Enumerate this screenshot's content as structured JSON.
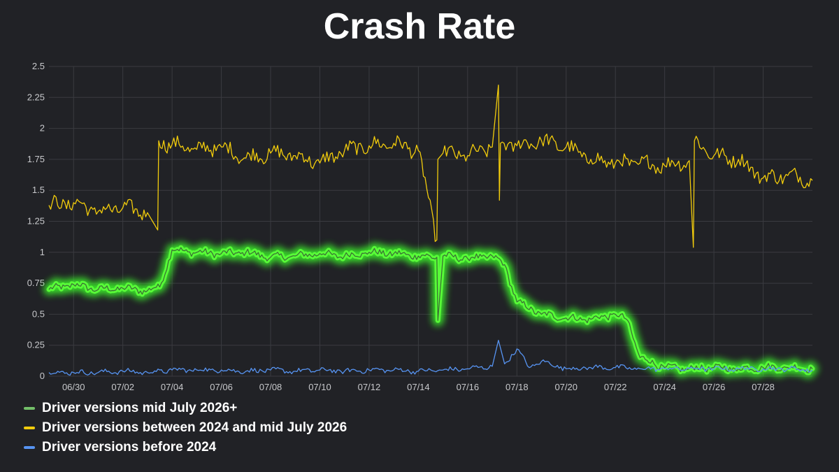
{
  "chart_data": {
    "type": "line",
    "title": "Crash Rate",
    "xlabel": "",
    "ylabel": "",
    "x_ticks": [
      "06/30",
      "07/02",
      "07/04",
      "07/06",
      "07/08",
      "07/10",
      "07/12",
      "07/14",
      "07/16",
      "07/18",
      "07/20",
      "07/22",
      "07/24",
      "07/26",
      "07/28"
    ],
    "y_ticks": [
      "0",
      "0.25",
      "0.5",
      "0.75",
      "1",
      "1.25",
      "1.5",
      "1.75",
      "2",
      "2.25",
      "2.5"
    ],
    "ylim": [
      0,
      2.5
    ],
    "xlim": [
      "06/29",
      "07/30"
    ],
    "grid": true,
    "legend_position": "bottom-left",
    "series": [
      {
        "name": "Driver versions mid July 2026+",
        "color": "#73bf69",
        "highlight": "glow",
        "x": [
          "06/29",
          "06/30",
          "07/01",
          "07/02",
          "07/03",
          "07/03 12:00",
          "07/04",
          "07/05",
          "07/06",
          "07/07",
          "07/08",
          "07/09",
          "07/10",
          "07/11",
          "07/12",
          "07/13",
          "07/14",
          "07/14 18:00",
          "07/14 19:00",
          "07/15",
          "07/16",
          "07/17",
          "07/17 12:00",
          "07/18",
          "07/19",
          "07/20",
          "07/21",
          "07/22",
          "07/22 12:00",
          "07/23",
          "07/24",
          "07/25",
          "07/26",
          "07/27",
          "07/28",
          "07/29",
          "07/30"
        ],
        "y": [
          0.7,
          0.74,
          0.7,
          0.71,
          0.69,
          0.72,
          1.02,
          1.0,
          0.99,
          1.0,
          0.96,
          0.97,
          0.99,
          0.97,
          1.0,
          0.99,
          0.97,
          0.96,
          0.45,
          0.97,
          0.95,
          0.97,
          0.9,
          0.6,
          0.5,
          0.47,
          0.46,
          0.5,
          0.45,
          0.15,
          0.07,
          0.06,
          0.07,
          0.06,
          0.07,
          0.07,
          0.06
        ]
      },
      {
        "name": "Driver versions between 2024 and mid July 2026",
        "color": "#f2cc0c",
        "x": [
          "06/29",
          "06/30",
          "07/01",
          "07/02",
          "07/03",
          "07/03 10:00",
          "07/03 11:00",
          "07/04",
          "07/05",
          "07/06",
          "07/07",
          "07/08",
          "07/09",
          "07/10",
          "07/11",
          "07/12",
          "07/13",
          "07/14",
          "07/14 18:00",
          "07/14 19:00",
          "07/15",
          "07/16",
          "07/17",
          "07/17 06:00",
          "07/17 07:00",
          "07/17 08:00",
          "07/18",
          "07/19",
          "07/20",
          "07/21",
          "07/22",
          "07/23",
          "07/24",
          "07/25",
          "07/25 04:00",
          "07/25 05:00",
          "07/26",
          "07/27",
          "07/28",
          "07/29",
          "07/30"
        ],
        "y": [
          1.38,
          1.4,
          1.33,
          1.36,
          1.32,
          1.18,
          1.9,
          1.87,
          1.83,
          1.85,
          1.76,
          1.8,
          1.78,
          1.72,
          1.82,
          1.86,
          1.88,
          1.82,
          1.1,
          1.75,
          1.8,
          1.78,
          1.85,
          2.35,
          1.42,
          1.88,
          1.86,
          1.9,
          1.85,
          1.75,
          1.72,
          1.72,
          1.7,
          1.74,
          1.04,
          1.9,
          1.78,
          1.75,
          1.6,
          1.62,
          1.58
        ]
      },
      {
        "name": "Driver versions before 2024",
        "color": "#5794f2",
        "x": [
          "06/29",
          "06/30",
          "07/01",
          "07/02",
          "07/03",
          "07/04",
          "07/05",
          "07/06",
          "07/07",
          "07/08",
          "07/09",
          "07/10",
          "07/11",
          "07/12",
          "07/13",
          "07/14",
          "07/15",
          "07/16",
          "07/17",
          "07/17 06:00",
          "07/17 12:00",
          "07/18",
          "07/18 12:00",
          "07/19",
          "07/20",
          "07/21",
          "07/22",
          "07/23",
          "07/24",
          "07/25",
          "07/26",
          "07/27",
          "07/28",
          "07/29",
          "07/30"
        ],
        "y": [
          0.03,
          0.03,
          0.03,
          0.04,
          0.03,
          0.05,
          0.05,
          0.05,
          0.04,
          0.05,
          0.04,
          0.05,
          0.04,
          0.05,
          0.05,
          0.04,
          0.05,
          0.06,
          0.08,
          0.29,
          0.1,
          0.22,
          0.07,
          0.12,
          0.06,
          0.07,
          0.07,
          0.06,
          0.06,
          0.06,
          0.06,
          0.06,
          0.06,
          0.06,
          0.05
        ]
      }
    ]
  }
}
